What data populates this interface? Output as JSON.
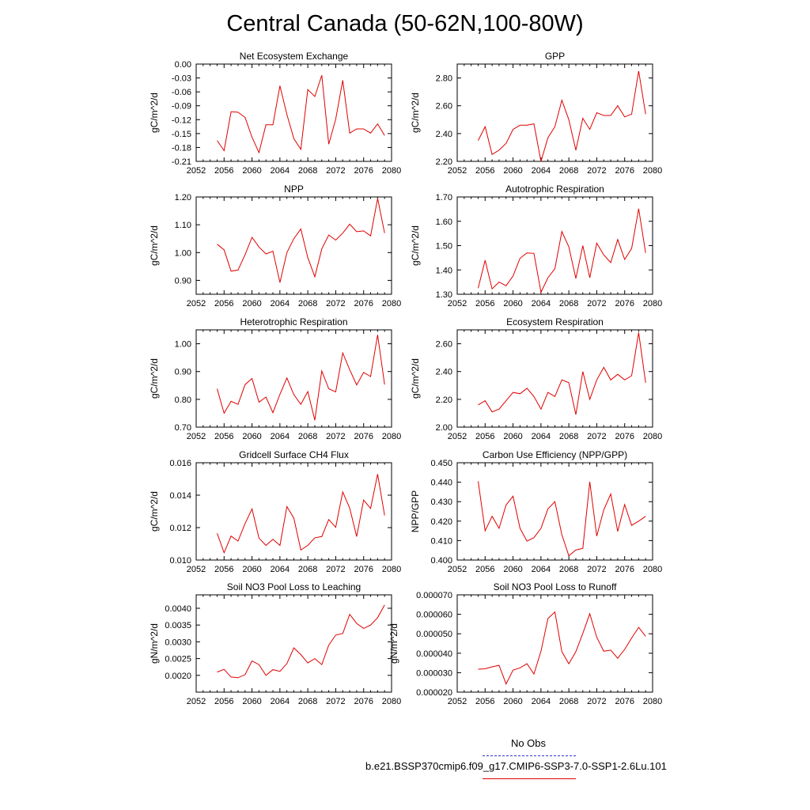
{
  "main_title": "Central Canada (50-62N,100-80W)",
  "colors": {
    "series": "#e00000",
    "obs": "#3333cc",
    "axis": "#000000"
  },
  "legend": {
    "obs_label": "No Obs",
    "model_label": "b.e21.BSSP370cmip6.f09_g17.CMIP6-SSP3-7.0-SSP1-2.6Lu.101"
  },
  "chart_data": [
    {
      "type": "line",
      "title": "Net Ecosystem Exchange",
      "ylabel": "gC/m^2/d",
      "xlim": [
        2052,
        2080
      ],
      "ylim": [
        -0.21,
        0.0
      ],
      "xticks": [
        2052,
        2056,
        2060,
        2064,
        2068,
        2072,
        2076,
        2080
      ],
      "yticks": [
        0.0,
        -0.03,
        -0.06,
        -0.09,
        -0.12,
        -0.15,
        -0.18,
        -0.21
      ],
      "yticklabels": [
        "0.00",
        "-0.03",
        "-0.06",
        "-0.09",
        "-0.12",
        "-0.15",
        "-0.18",
        "-0.21"
      ],
      "x": [
        2055,
        2056,
        2057,
        2058,
        2059,
        2060,
        2061,
        2062,
        2063,
        2064,
        2065,
        2066,
        2067,
        2068,
        2069,
        2070,
        2071,
        2072,
        2073,
        2074,
        2075,
        2076,
        2077,
        2078,
        2079
      ],
      "y": [
        -0.165,
        -0.187,
        -0.103,
        -0.104,
        -0.115,
        -0.158,
        -0.191,
        -0.131,
        -0.131,
        -0.047,
        -0.109,
        -0.161,
        -0.184,
        -0.055,
        -0.07,
        -0.024,
        -0.173,
        -0.119,
        -0.035,
        -0.149,
        -0.14,
        -0.14,
        -0.149,
        -0.129,
        -0.154
      ]
    },
    {
      "type": "line",
      "title": "GPP",
      "ylabel": "gC/m^2/d",
      "xlim": [
        2052,
        2080
      ],
      "ylim": [
        2.2,
        2.9
      ],
      "xticks": [
        2052,
        2056,
        2060,
        2064,
        2068,
        2072,
        2076,
        2080
      ],
      "yticks": [
        2.2,
        2.4,
        2.6,
        2.8
      ],
      "yticklabels": [
        "2.20",
        "2.40",
        "2.60",
        "2.80"
      ],
      "x": [
        2055,
        2056,
        2057,
        2058,
        2059,
        2060,
        2061,
        2062,
        2063,
        2064,
        2065,
        2066,
        2067,
        2068,
        2069,
        2070,
        2071,
        2072,
        2073,
        2074,
        2075,
        2076,
        2077,
        2078,
        2079
      ],
      "y": [
        2.35,
        2.45,
        2.25,
        2.28,
        2.33,
        2.43,
        2.46,
        2.46,
        2.47,
        2.2,
        2.37,
        2.45,
        2.64,
        2.5,
        2.28,
        2.51,
        2.43,
        2.55,
        2.53,
        2.53,
        2.6,
        2.52,
        2.54,
        2.85,
        2.54
      ]
    },
    {
      "type": "line",
      "title": "NPP",
      "ylabel": "gC/m^2/d",
      "xlim": [
        2052,
        2080
      ],
      "ylim": [
        0.85,
        1.2
      ],
      "xticks": [
        2052,
        2056,
        2060,
        2064,
        2068,
        2072,
        2076,
        2080
      ],
      "yticks": [
        0.9,
        1.0,
        1.1,
        1.2
      ],
      "yticklabels": [
        "0.90",
        "1.00",
        "1.10",
        "1.20"
      ],
      "x": [
        2055,
        2056,
        2057,
        2058,
        2059,
        2060,
        2061,
        2062,
        2063,
        2064,
        2065,
        2066,
        2067,
        2068,
        2069,
        2070,
        2071,
        2072,
        2073,
        2074,
        2075,
        2076,
        2077,
        2078,
        2079
      ],
      "y": [
        1.03,
        1.01,
        0.933,
        0.937,
        0.992,
        1.055,
        1.02,
        0.995,
        1.005,
        0.892,
        1.0,
        1.05,
        1.085,
        0.982,
        0.913,
        1.013,
        1.063,
        1.045,
        1.07,
        1.102,
        1.075,
        1.078,
        1.06,
        1.195,
        1.07
      ]
    },
    {
      "type": "line",
      "title": "Autotrophic Respiration",
      "ylabel": "gC/m^2/d",
      "xlim": [
        2052,
        2080
      ],
      "ylim": [
        1.3,
        1.7
      ],
      "xticks": [
        2052,
        2056,
        2060,
        2064,
        2068,
        2072,
        2076,
        2080
      ],
      "yticks": [
        1.3,
        1.4,
        1.5,
        1.6,
        1.7
      ],
      "yticklabels": [
        "1.30",
        "1.40",
        "1.50",
        "1.60",
        "1.70"
      ],
      "x": [
        2055,
        2056,
        2057,
        2058,
        2059,
        2060,
        2061,
        2062,
        2063,
        2064,
        2065,
        2066,
        2067,
        2068,
        2069,
        2070,
        2071,
        2072,
        2073,
        2074,
        2075,
        2076,
        2077,
        2078,
        2079
      ],
      "y": [
        1.325,
        1.44,
        1.322,
        1.35,
        1.335,
        1.375,
        1.448,
        1.47,
        1.468,
        1.308,
        1.368,
        1.405,
        1.558,
        1.495,
        1.365,
        1.5,
        1.368,
        1.51,
        1.462,
        1.43,
        1.525,
        1.443,
        1.488,
        1.652,
        1.47
      ]
    },
    {
      "type": "line",
      "title": "Heterotrophic Respiration",
      "ylabel": "gC/m^2/d",
      "xlim": [
        2052,
        2080
      ],
      "ylim": [
        0.7,
        1.05
      ],
      "xticks": [
        2052,
        2056,
        2060,
        2064,
        2068,
        2072,
        2076,
        2080
      ],
      "yticks": [
        0.7,
        0.8,
        0.9,
        1.0
      ],
      "yticklabels": [
        "0.70",
        "0.80",
        "0.90",
        "1.00"
      ],
      "x": [
        2055,
        2056,
        2057,
        2058,
        2059,
        2060,
        2061,
        2062,
        2063,
        2064,
        2065,
        2066,
        2067,
        2068,
        2069,
        2070,
        2071,
        2072,
        2073,
        2074,
        2075,
        2076,
        2077,
        2078,
        2079
      ],
      "y": [
        0.838,
        0.75,
        0.793,
        0.782,
        0.853,
        0.875,
        0.79,
        0.808,
        0.752,
        0.818,
        0.877,
        0.817,
        0.782,
        0.828,
        0.725,
        0.902,
        0.838,
        0.827,
        0.967,
        0.907,
        0.852,
        0.897,
        0.882,
        1.032,
        0.853
      ]
    },
    {
      "type": "line",
      "title": "Ecosystem Respiration",
      "ylabel": "gC/m^2/d",
      "xlim": [
        2052,
        2080
      ],
      "ylim": [
        2.0,
        2.7
      ],
      "xticks": [
        2052,
        2056,
        2060,
        2064,
        2068,
        2072,
        2076,
        2080
      ],
      "yticks": [
        2.0,
        2.2,
        2.4,
        2.6
      ],
      "yticklabels": [
        "2.00",
        "2.20",
        "2.40",
        "2.60"
      ],
      "x": [
        2055,
        2056,
        2057,
        2058,
        2059,
        2060,
        2061,
        2062,
        2063,
        2064,
        2065,
        2066,
        2067,
        2068,
        2069,
        2070,
        2071,
        2072,
        2073,
        2074,
        2075,
        2076,
        2077,
        2078,
        2079
      ],
      "y": [
        2.16,
        2.19,
        2.11,
        2.13,
        2.19,
        2.25,
        2.24,
        2.28,
        2.22,
        2.13,
        2.25,
        2.22,
        2.34,
        2.32,
        2.09,
        2.4,
        2.2,
        2.34,
        2.43,
        2.34,
        2.38,
        2.34,
        2.37,
        2.68,
        2.32
      ]
    },
    {
      "type": "line",
      "title": "Gridcell Surface CH4 Flux",
      "ylabel": "gC/m^2/d",
      "xlim": [
        2052,
        2080
      ],
      "ylim": [
        0.01,
        0.016
      ],
      "xticks": [
        2052,
        2056,
        2060,
        2064,
        2068,
        2072,
        2076,
        2080
      ],
      "yticks": [
        0.01,
        0.012,
        0.014,
        0.016
      ],
      "yticklabels": [
        "0.010",
        "0.012",
        "0.014",
        "0.016"
      ],
      "x": [
        2055,
        2056,
        2057,
        2058,
        2059,
        2060,
        2061,
        2062,
        2063,
        2064,
        2065,
        2066,
        2067,
        2068,
        2069,
        2070,
        2071,
        2072,
        2073,
        2074,
        2075,
        2076,
        2077,
        2078,
        2079
      ],
      "y": [
        0.01165,
        0.01045,
        0.01148,
        0.01117,
        0.01225,
        0.01315,
        0.01135,
        0.0109,
        0.01128,
        0.0109,
        0.0133,
        0.01258,
        0.01062,
        0.0109,
        0.01137,
        0.01145,
        0.0125,
        0.01202,
        0.0142,
        0.0132,
        0.01145,
        0.0137,
        0.01318,
        0.0153,
        0.01275
      ]
    },
    {
      "type": "line",
      "title": "Carbon Use Efficiency (NPP/GPP)",
      "ylabel": "NPP/GPP",
      "xlim": [
        2052,
        2080
      ],
      "ylim": [
        0.4,
        0.45
      ],
      "xticks": [
        2052,
        2056,
        2060,
        2064,
        2068,
        2072,
        2076,
        2080
      ],
      "yticks": [
        0.4,
        0.41,
        0.42,
        0.43,
        0.44,
        0.45
      ],
      "yticklabels": [
        "0.400",
        "0.410",
        "0.420",
        "0.430",
        "0.440",
        "0.450"
      ],
      "x": [
        2055,
        2056,
        2057,
        2058,
        2059,
        2060,
        2061,
        2062,
        2063,
        2064,
        2065,
        2066,
        2067,
        2068,
        2069,
        2070,
        2071,
        2072,
        2073,
        2074,
        2075,
        2076,
        2077,
        2078,
        2079
      ],
      "y": [
        0.4405,
        0.415,
        0.4225,
        0.4163,
        0.4283,
        0.4328,
        0.4163,
        0.4097,
        0.4115,
        0.4163,
        0.4263,
        0.43,
        0.413,
        0.4022,
        0.4052,
        0.406,
        0.4402,
        0.4123,
        0.4258,
        0.434,
        0.4147,
        0.4285,
        0.4178,
        0.42,
        0.4225
      ]
    },
    {
      "type": "line",
      "title": "Soil NO3 Pool Loss to Leaching",
      "ylabel": "gN/m^2/d",
      "xlim": [
        2052,
        2080
      ],
      "ylim": [
        0.0015,
        0.0044
      ],
      "xticks": [
        2052,
        2056,
        2060,
        2064,
        2068,
        2072,
        2076,
        2080
      ],
      "yticks": [
        0.002,
        0.0025,
        0.003,
        0.0035,
        0.004
      ],
      "yticklabels": [
        "0.0020",
        "0.0025",
        "0.0030",
        "0.0035",
        "0.0040"
      ],
      "x": [
        2055,
        2056,
        2057,
        2058,
        2059,
        2060,
        2061,
        2062,
        2063,
        2064,
        2065,
        2066,
        2067,
        2068,
        2069,
        2070,
        2071,
        2072,
        2073,
        2074,
        2075,
        2076,
        2077,
        2078,
        2079
      ],
      "y": [
        0.0021,
        0.00218,
        0.00195,
        0.00193,
        0.00202,
        0.00243,
        0.00232,
        0.002,
        0.00217,
        0.00212,
        0.00235,
        0.00282,
        0.00262,
        0.00237,
        0.0025,
        0.00232,
        0.0029,
        0.0032,
        0.00325,
        0.00382,
        0.00355,
        0.0034,
        0.0035,
        0.00372,
        0.0041
      ]
    },
    {
      "type": "line",
      "title": "Soil NO3 Pool Loss to Runoff",
      "ylabel": "gN/m^2/d",
      "xlim": [
        2052,
        2080
      ],
      "ylim": [
        2e-05,
        7e-05
      ],
      "xticks": [
        2052,
        2056,
        2060,
        2064,
        2068,
        2072,
        2076,
        2080
      ],
      "yticks": [
        2e-05,
        3e-05,
        4e-05,
        5e-05,
        6e-05,
        7e-05
      ],
      "yticklabels": [
        "0.000020",
        "0.000030",
        "0.000040",
        "0.000050",
        "0.000060",
        "0.000070"
      ],
      "x": [
        2055,
        2056,
        2057,
        2058,
        2059,
        2060,
        2061,
        2062,
        2063,
        2064,
        2065,
        2066,
        2067,
        2068,
        2069,
        2070,
        2071,
        2072,
        2073,
        2074,
        2075,
        2076,
        2077,
        2078,
        2079
      ],
      "y": [
        3.18e-05,
        3.2e-05,
        3.3e-05,
        3.38e-05,
        2.42e-05,
        3.13e-05,
        3.25e-05,
        3.46e-05,
        2.93e-05,
        4.1e-05,
        5.78e-05,
        6.12e-05,
        4.08e-05,
        3.46e-05,
        4.08e-05,
        5.02e-05,
        6.03e-05,
        4.82e-05,
        4.1e-05,
        4.16e-05,
        3.74e-05,
        4.2e-05,
        4.78e-05,
        5.33e-05,
        4.87e-05
      ]
    }
  ]
}
